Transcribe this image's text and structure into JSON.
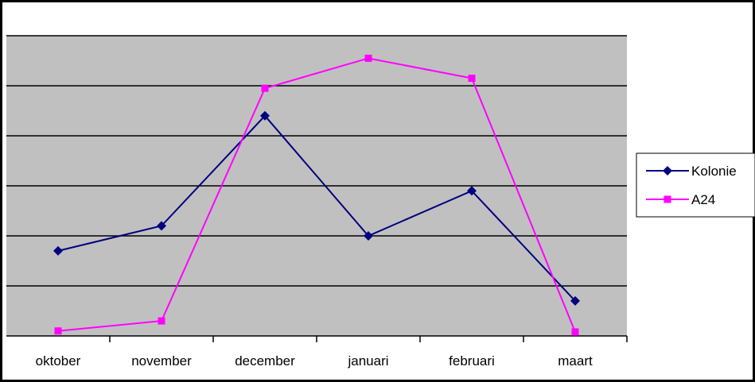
{
  "chart_data": {
    "type": "line",
    "title": "",
    "xlabel": "",
    "ylabel": "",
    "categories": [
      "oktober",
      "november",
      "december",
      "januari",
      "februari",
      "maart"
    ],
    "ylim": [
      0,
      6
    ],
    "y_gridlines": [
      0,
      1,
      2,
      3,
      4,
      5,
      6
    ],
    "y_tick_labels_visible": false,
    "grid": true,
    "plot_background": "#C0C0C0",
    "legend_position": "right",
    "series": [
      {
        "name": "Kolonie",
        "values": [
          1.7,
          2.2,
          4.4,
          2.0,
          2.9,
          0.7
        ],
        "color": "#000080",
        "marker": "diamond"
      },
      {
        "name": "A24",
        "values": [
          0.1,
          0.3,
          4.95,
          5.55,
          5.15,
          0.08
        ],
        "color": "#FF00FF",
        "marker": "square"
      }
    ]
  }
}
